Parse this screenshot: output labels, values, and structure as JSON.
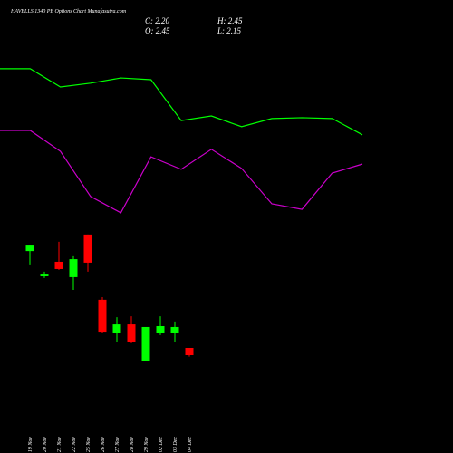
{
  "chart_data": {
    "type": "candlestick",
    "title": "HAVELLS 1340 PE Options Chart Munafasutra.com",
    "ohlc_labels": [
      "C: 2.20",
      "H: 2.45",
      "O: 2.45",
      "L: 2.15"
    ],
    "categories": [
      "19 Nov",
      "20 Nov",
      "21 Nov",
      "22 Nov",
      "25 Nov",
      "26 Nov",
      "27 Nov",
      "28 Nov",
      "29 Nov",
      "02 Dec",
      "03 Dec",
      "04 Dec"
    ],
    "open": [
      5.79,
      4.92,
      5.42,
      4.89,
      6.36,
      4.11,
      2.95,
      3.26,
      2.01,
      2.95,
      2.95,
      2.45
    ],
    "high": [
      6.01,
      5.08,
      6.11,
      5.61,
      6.36,
      4.2,
      3.51,
      3.54,
      3.17,
      3.54,
      3.36,
      2.45
    ],
    "low": [
      5.33,
      4.86,
      5.14,
      4.45,
      5.08,
      2.98,
      2.64,
      2.61,
      2.01,
      2.89,
      2.64,
      2.15
    ],
    "close": [
      6.01,
      5.01,
      5.17,
      5.51,
      5.39,
      3.01,
      3.26,
      2.64,
      3.17,
      3.2,
      3.17,
      2.2
    ],
    "up_color": "#00ff00",
    "down_color": "#ff0000",
    "ylim": [
      -1.175,
      14.45
    ],
    "lines": [
      {
        "color": "#00ff00",
        "x": [
          0,
          1,
          2,
          3,
          4,
          5,
          6,
          7,
          8,
          9,
          10,
          11,
          12
        ],
        "values": [
          12.08,
          12.08,
          11.45,
          11.58,
          11.76,
          11.7,
          10.29,
          10.45,
          10.08,
          10.36,
          10.39,
          10.36,
          9.8
        ]
      },
      {
        "color": "#cc00cc",
        "x": [
          0,
          1,
          2,
          3,
          4,
          5,
          6,
          7,
          8,
          9,
          10,
          11,
          12
        ],
        "values": [
          9.95,
          9.95,
          9.23,
          7.67,
          7.11,
          9.04,
          8.61,
          9.3,
          8.64,
          7.42,
          7.23,
          8.48,
          8.79
        ]
      }
    ],
    "lines_xlim": [
      0,
      12
    ]
  }
}
